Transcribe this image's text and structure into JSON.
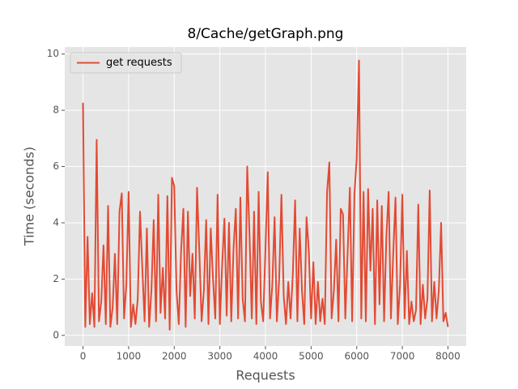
{
  "chart_data": {
    "type": "line",
    "title": "8/Cache/getGraph.png",
    "x_label": "Requests",
    "y_label": "Time (seconds)",
    "x": [
      0,
      50,
      100,
      150,
      200,
      250,
      300,
      350,
      400,
      450,
      500,
      550,
      600,
      650,
      700,
      750,
      800,
      850,
      900,
      950,
      1000,
      1050,
      1100,
      1150,
      1200,
      1250,
      1300,
      1350,
      1400,
      1450,
      1500,
      1550,
      1600,
      1650,
      1700,
      1750,
      1800,
      1850,
      1900,
      1950,
      2000,
      2050,
      2100,
      2150,
      2200,
      2250,
      2300,
      2350,
      2400,
      2450,
      2500,
      2550,
      2600,
      2650,
      2700,
      2750,
      2800,
      2850,
      2900,
      2950,
      3000,
      3050,
      3100,
      3150,
      3200,
      3250,
      3300,
      3350,
      3400,
      3450,
      3500,
      3550,
      3600,
      3650,
      3700,
      3750,
      3800,
      3850,
      3900,
      3950,
      4000,
      4050,
      4100,
      4150,
      4200,
      4250,
      4300,
      4350,
      4400,
      4450,
      4500,
      4550,
      4600,
      4650,
      4700,
      4750,
      4800,
      4850,
      4900,
      4950,
      5000,
      5050,
      5100,
      5150,
      5200,
      5250,
      5300,
      5350,
      5400,
      5450,
      5500,
      5550,
      5600,
      5650,
      5700,
      5750,
      5800,
      5850,
      5900,
      5950,
      6000,
      6050,
      6100,
      6150,
      6200,
      6250,
      6300,
      6350,
      6400,
      6450,
      6500,
      6550,
      6600,
      6650,
      6700,
      6750,
      6800,
      6850,
      6900,
      6950,
      7000,
      7050,
      7100,
      7150,
      7200,
      7250,
      7300,
      7350,
      7400,
      7450,
      7500,
      7550,
      7600,
      7650,
      7700,
      7750,
      7800,
      7850,
      7900,
      7950,
      8000
    ],
    "series": [
      {
        "name": "get requests",
        "color": "#E24A33",
        "values": [
          8.27,
          0.3,
          3.5,
          0.4,
          1.5,
          0.3,
          6.95,
          0.5,
          1.2,
          3.2,
          0.4,
          4.6,
          0.3,
          1.0,
          2.9,
          0.4,
          4.4,
          5.05,
          0.6,
          1.8,
          5.1,
          0.3,
          1.1,
          0.4,
          1.3,
          4.4,
          2.4,
          0.5,
          3.8,
          0.3,
          1.6,
          4.1,
          0.5,
          5.0,
          0.8,
          2.4,
          0.6,
          4.95,
          0.2,
          5.6,
          5.3,
          1.6,
          0.4,
          3.0,
          4.5,
          0.3,
          4.4,
          1.4,
          2.9,
          0.6,
          5.25,
          3.0,
          0.5,
          1.6,
          4.1,
          0.4,
          3.8,
          2.0,
          0.6,
          5.0,
          0.4,
          2.5,
          4.15,
          0.7,
          4.0,
          0.5,
          3.1,
          4.5,
          0.6,
          4.9,
          1.3,
          0.5,
          6.0,
          3.6,
          0.6,
          4.4,
          0.4,
          5.1,
          1.2,
          0.5,
          3.1,
          5.8,
          0.6,
          1.8,
          4.2,
          0.5,
          2.0,
          5.0,
          1.4,
          0.4,
          1.9,
          0.6,
          2.2,
          4.8,
          0.5,
          3.8,
          1.6,
          0.4,
          4.2,
          3.0,
          0.6,
          2.6,
          0.4,
          1.9,
          0.5,
          1.3,
          0.4,
          5.1,
          6.15,
          0.6,
          1.6,
          3.4,
          0.5,
          4.5,
          4.3,
          0.6,
          2.9,
          5.25,
          0.5,
          5.0,
          6.3,
          9.77,
          0.6,
          5.1,
          0.5,
          5.2,
          2.3,
          4.5,
          0.4,
          4.8,
          1.1,
          4.6,
          0.5,
          3.5,
          5.1,
          0.6,
          2.9,
          4.9,
          0.4,
          1.8,
          5.0,
          0.6,
          3.0,
          0.4,
          1.2,
          0.5,
          0.9,
          4.65,
          0.4,
          1.8,
          0.6,
          1.3,
          5.15,
          0.5,
          1.9,
          0.6,
          1.6,
          4.0,
          0.5,
          0.8,
          0.3
        ]
      }
    ],
    "xlim": [
      -400,
      8400
    ],
    "ylim": [
      -0.38,
      10.25
    ],
    "xticks": [
      0,
      1000,
      2000,
      3000,
      4000,
      5000,
      6000,
      7000,
      8000
    ],
    "yticks": [
      0,
      2,
      4,
      6,
      8,
      10
    ],
    "grid": true,
    "legend": "upper left"
  }
}
